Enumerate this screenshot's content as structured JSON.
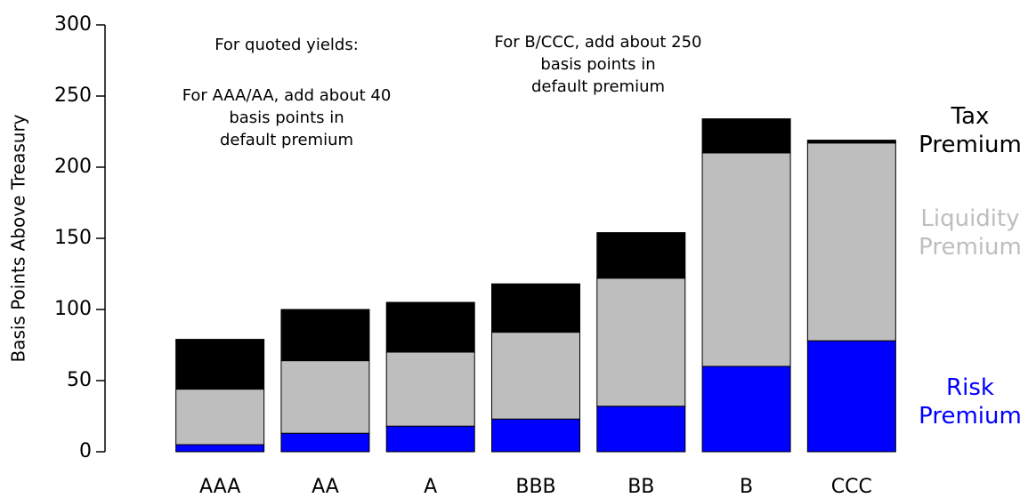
{
  "chart_data": {
    "type": "stacked_bar",
    "ylabel": "Basis Points Above Treasury",
    "categories": [
      "AAA",
      "AA",
      "A",
      "BBB",
      "BB",
      "B",
      "CCC"
    ],
    "series": [
      {
        "name": "Risk Premium",
        "color": "#0000ff",
        "values": [
          5,
          13,
          18,
          23,
          32,
          60,
          78
        ]
      },
      {
        "name": "Liquidity Premium",
        "color": "#bebebe",
        "values": [
          39,
          51,
          52,
          61,
          90,
          150,
          139
        ]
      },
      {
        "name": "Tax Premium",
        "color": "#000000",
        "values": [
          35,
          36,
          35,
          34,
          32,
          24,
          2
        ]
      }
    ],
    "ylim": [
      0,
      300
    ],
    "yticks": [
      0,
      50,
      100,
      150,
      200,
      250,
      300
    ],
    "annotations": [
      "For quoted yields:",
      "For AAA/AA, add about 40\nbasis points in\ndefault premium",
      "For B/CCC, add about 250\nbasis points in\ndefault premium"
    ]
  }
}
